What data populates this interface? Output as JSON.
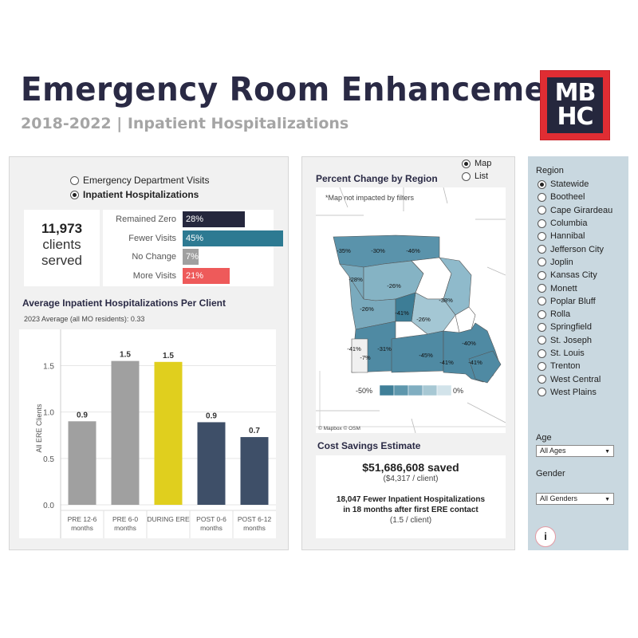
{
  "header": {
    "title": "Emergency Room Enhancement",
    "subtitle": "2018-2022 | Inpatient Hospitalizations",
    "logo_top": "MB",
    "logo_bottom": "HC"
  },
  "left": {
    "radio_options": [
      {
        "label": "Emergency Department Visits",
        "selected": false
      },
      {
        "label": "Inpatient Hospitalizations",
        "selected": true
      }
    ],
    "clients": {
      "number": "11,973",
      "line1": "clients",
      "line2": "served"
    },
    "breakdown": [
      {
        "label": "Remained Zero",
        "value": "28%",
        "pct": 28,
        "color": "#25273d"
      },
      {
        "label": "Fewer Visits",
        "value": "45%",
        "pct": 45,
        "color": "#2d7a92"
      },
      {
        "label": "No Change",
        "value": "7%",
        "pct": 7,
        "color": "#a0a0a0"
      },
      {
        "label": "More Visits",
        "value": "21%",
        "pct": 21,
        "color": "#ee5a5a"
      }
    ],
    "chart_title": "Average Inpatient Hospitalizations Per Client",
    "chart_note": "2023 Average (all MO residents): 0.33"
  },
  "chart_data": {
    "type": "bar",
    "categories": [
      [
        "PRE 12-6",
        "months"
      ],
      [
        "PRE 6-0",
        "months"
      ],
      [
        "DURING ERE"
      ],
      [
        "POST 0-6",
        "months"
      ],
      [
        "POST 6-12",
        "months"
      ]
    ],
    "values": [
      0.9,
      1.55,
      1.54,
      0.89,
      0.73
    ],
    "data_labels": [
      "0.9",
      "1.5",
      "1.5",
      "0.9",
      "0.7"
    ],
    "colors": [
      "#a0a0a0",
      "#a0a0a0",
      "#e0cf1e",
      "#3e4f68",
      "#3e4f68"
    ],
    "ylabel": "All ERE Clients",
    "yticks": [
      "0.0",
      "0.5",
      "1.0",
      "1.5"
    ],
    "ytick_values": [
      0,
      0.5,
      1.0,
      1.5
    ],
    "ylim": [
      0,
      1.65
    ]
  },
  "map": {
    "view_options": [
      {
        "label": "Map",
        "selected": true
      },
      {
        "label": "List",
        "selected": false
      }
    ],
    "title": "Percent Change by Region",
    "note": "*Map not impacted by filters",
    "labels": [
      "-35%",
      "-30%",
      "-46%",
      "-28%",
      "-26%",
      "-26%",
      "-38%",
      "-41%",
      "-26%",
      "-40%",
      "-41%",
      "-7%",
      "-31%",
      "-45%",
      "-41%",
      "-41%"
    ],
    "legend_min": "-50%",
    "legend_max": "0%",
    "legend_colors": [
      "#3f7f98",
      "#5e97ad",
      "#80aec1",
      "#a7c8d4",
      "#d2e3ea"
    ],
    "attribution": "© Mapbox  © OSM"
  },
  "savings": {
    "title": "Cost Savings Estimate",
    "amount": "$51,686,608 saved",
    "per_client": "($4,317 / client)",
    "line1": "18,047 Fewer Inpatient Hospitalizations",
    "line2": "in 18 months after first ERE contact",
    "line3": "(1.5 / client)"
  },
  "filters": {
    "region_label": "Region",
    "regions": [
      "Statewide",
      "Bootheel",
      "Cape Girardeau",
      "Columbia",
      "Hannibal",
      "Jefferson City",
      "Joplin",
      "Kansas City",
      "Monett",
      "Poplar Bluff",
      "Rolla",
      "Springfield",
      "St. Joseph",
      "St. Louis",
      "Trenton",
      "West Central",
      "West Plains"
    ],
    "selected_region": "Statewide",
    "age_label": "Age",
    "age_value": "All Ages",
    "gender_label": "Gender",
    "gender_value": "All Genders",
    "info": "i"
  }
}
